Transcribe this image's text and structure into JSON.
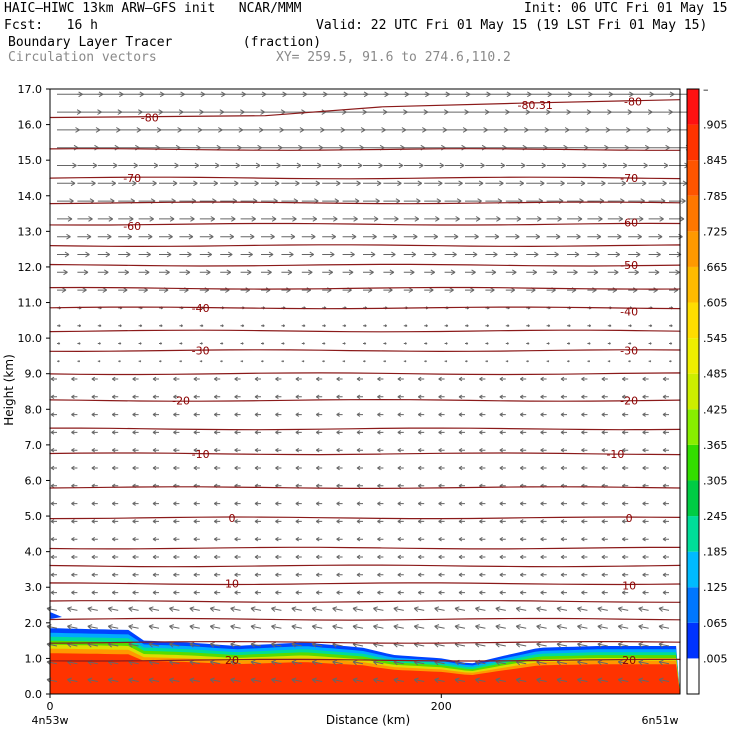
{
  "header": {
    "model_line": "HAIC–HIWC 13km ARW–GFS init   NCAR/MMM",
    "init": "Init: 06 UTC Fri 01 May 15",
    "fcst": "Fcst:   16 h",
    "valid": "Valid: 22 UTC Fri 01 May 15 (19 LST Fri 01 May 15)",
    "field": "Boundary Layer Tracer         (fraction)",
    "vectors": "Circulation vectors",
    "xy": "XY= 259.5, 91.6 to 274.6,110.2"
  },
  "colors": {
    "contour": "#8b1a1a",
    "vector": "#666666",
    "scale": [
      "#ffffff",
      "#0033ff",
      "#0077ff",
      "#00bbff",
      "#00dd99",
      "#00cc44",
      "#33dd00",
      "#88ee00",
      "#ccee00",
      "#eeee00",
      "#ffdd00",
      "#ffbb00",
      "#ff9900",
      "#ff7700",
      "#ff5500",
      "#ff3300",
      "#ff1111"
    ]
  },
  "chart_data": {
    "type": "cross-section",
    "title": "Boundary Layer Tracer",
    "units": "(fraction)",
    "xlabel": "Distance (km)",
    "ylabel": "Height (km)",
    "x_endpoints": [
      "4n53w",
      "6n51w"
    ],
    "x_ticks": [
      {
        "value": 0,
        "label": "0"
      },
      {
        "value": 200,
        "label": "200"
      }
    ],
    "xlim": [
      0,
      322
    ],
    "ylim": [
      0,
      17
    ],
    "y_ticks": [
      "0.0",
      "1.0",
      "2.0",
      "3.0",
      "4.0",
      "5.0",
      "6.0",
      "7.0",
      "8.0",
      "9.0",
      "10.0",
      "11.0",
      "12.0",
      "13.0",
      "14.0",
      "15.0",
      "16.0",
      "17.0"
    ],
    "colorbar_ticks": [
      "–",
      ".905",
      ".845",
      ".785",
      ".725",
      ".665",
      ".605",
      ".545",
      ".485",
      ".425",
      ".365",
      ".305",
      ".245",
      ".185",
      ".125",
      ".065",
      ".005"
    ],
    "temperature_contours": [
      {
        "label": "20",
        "labels_at": [
          {
            "x": 93,
            "h": 0.95
          },
          {
            "x": 296,
            "h": 0.95
          }
        ]
      },
      {
        "label": "10",
        "labels_at": [
          {
            "x": 93,
            "h": 3.1
          },
          {
            "x": 296,
            "h": 3.05
          }
        ]
      },
      {
        "label": "0",
        "labels_at": [
          {
            "x": 93,
            "h": 4.95
          },
          {
            "x": 296,
            "h": 4.95
          }
        ]
      },
      {
        "label": "-10",
        "labels_at": [
          {
            "x": 77,
            "h": 6.75
          },
          {
            "x": 289,
            "h": 6.75
          }
        ]
      },
      {
        "label": "-20",
        "labels_at": [
          {
            "x": 67,
            "h": 8.25
          },
          {
            "x": 296,
            "h": 8.25
          }
        ]
      },
      {
        "label": "-30",
        "labels_at": [
          {
            "x": 77,
            "h": 9.65
          },
          {
            "x": 296,
            "h": 9.65
          }
        ]
      },
      {
        "label": "-40",
        "labels_at": [
          {
            "x": 77,
            "h": 10.85
          },
          {
            "x": 296,
            "h": 10.75
          }
        ]
      },
      {
        "label": "-50",
        "labels_at": [
          {
            "x": 296,
            "h": 12.05
          }
        ]
      },
      {
        "label": "-60",
        "labels_at": [
          {
            "x": 42,
            "h": 13.15
          },
          {
            "x": 296,
            "h": 13.25
          }
        ]
      },
      {
        "label": "-70",
        "labels_at": [
          {
            "x": 42,
            "h": 14.5
          },
          {
            "x": 296,
            "h": 14.5
          }
        ]
      },
      {
        "label": "-80",
        "labels_at": [
          {
            "x": 51,
            "h": 16.2
          },
          {
            "x": 298,
            "h": 16.65
          }
        ]
      }
    ],
    "contour_heights_km": [
      0.95,
      1.45,
      2.1,
      2.6,
      3.1,
      3.6,
      4.1,
      4.95,
      5.8,
      6.75,
      7.45,
      8.25,
      9.0,
      9.65,
      10.2,
      10.85,
      11.4,
      12.05,
      12.6,
      13.2,
      13.8,
      14.5,
      15.3
    ],
    "contour_80_profile": [
      {
        "x": 0,
        "h": 16.2
      },
      {
        "x": 110,
        "h": 16.25
      },
      {
        "x": 170,
        "h": 16.5
      },
      {
        "x": 240,
        "h": 16.6
      },
      {
        "x": 322,
        "h": 16.7
      }
    ],
    "minimum_label": {
      "text": "-80.31",
      "x": 248,
      "h": 16.55
    },
    "tracer_top_km": [
      {
        "x": 0,
        "h": 1.85
      },
      {
        "x": 40,
        "h": 1.8
      },
      {
        "x": 48,
        "h": 1.5
      },
      {
        "x": 70,
        "h": 1.45
      },
      {
        "x": 95,
        "h": 1.35
      },
      {
        "x": 130,
        "h": 1.45
      },
      {
        "x": 160,
        "h": 1.3
      },
      {
        "x": 175,
        "h": 1.1
      },
      {
        "x": 200,
        "h": 1.0
      },
      {
        "x": 215,
        "h": 0.85
      },
      {
        "x": 230,
        "h": 1.05
      },
      {
        "x": 250,
        "h": 1.3
      },
      {
        "x": 280,
        "h": 1.35
      },
      {
        "x": 322,
        "h": 1.35
      }
    ]
  }
}
